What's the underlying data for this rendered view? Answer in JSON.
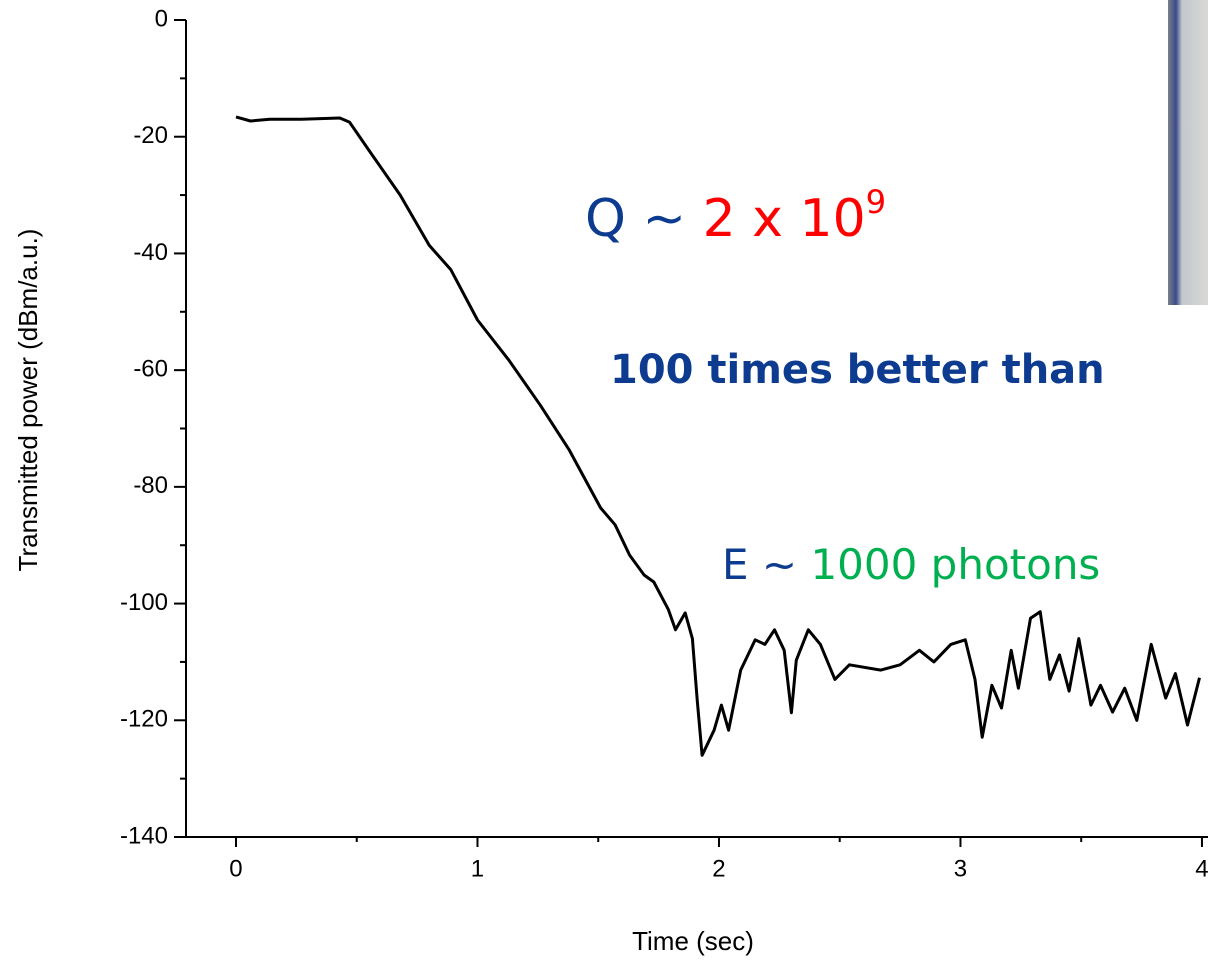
{
  "chart_data": {
    "type": "line",
    "x_label": "Time (sec)",
    "y_label": "Transmitted power (dBm/a.u.)",
    "xlim": [
      -0.207,
      4.025
    ],
    "ylim": [
      -140,
      0
    ],
    "xticks": [
      0,
      1,
      2,
      3,
      4
    ],
    "yticks": [
      0,
      -20,
      -40,
      -60,
      -80,
      -100,
      -120,
      -140
    ],
    "xminorticks": [
      0.5,
      1.5,
      2.5,
      3.5
    ],
    "yminorticks": [
      -10,
      -30,
      -50,
      -70,
      -90,
      -110,
      -130
    ],
    "series": [
      {
        "color": "#000000",
        "x": [
          0,
          0.06,
          0.14,
          0.27,
          0.43,
          0.47,
          0.55,
          0.68,
          0.8,
          0.89,
          1.0,
          1.13,
          1.26,
          1.38,
          1.51,
          1.57,
          1.63,
          1.69,
          1.73,
          1.79,
          1.82,
          1.86,
          1.89,
          1.91,
          1.93,
          1.98,
          2.01,
          2.04,
          2.09,
          2.15,
          2.19,
          2.23,
          2.27,
          2.3,
          2.32,
          2.37,
          2.42,
          2.48,
          2.54,
          2.67,
          2.75,
          2.83,
          2.89,
          2.96,
          3.02,
          3.06,
          3.09,
          3.13,
          3.17,
          3.21,
          3.24,
          3.29,
          3.33,
          3.37,
          3.41,
          3.45,
          3.49,
          3.54,
          3.58,
          3.63,
          3.68,
          3.73,
          3.79,
          3.85,
          3.89,
          3.94,
          3.99
        ],
        "values": [
          -16.6,
          -17.3,
          -17,
          -17,
          -16.8,
          -17.5,
          -22.3,
          -30,
          -38.6,
          -42.8,
          -51.4,
          -58.3,
          -66,
          -73.7,
          -83.6,
          -86.5,
          -91.7,
          -95.1,
          -96.3,
          -101,
          -104.5,
          -101.6,
          -106,
          -116.5,
          -126,
          -121.7,
          -117.4,
          -121.7,
          -111.4,
          -106.2,
          -107,
          -104.5,
          -108,
          -118.7,
          -109.7,
          -104.5,
          -107,
          -113,
          -110.5,
          -111.4,
          -110.5,
          -108,
          -110,
          -107,
          -106.2,
          -113,
          -122.9,
          -114,
          -117.9,
          -108,
          -114.5,
          -102.5,
          -101.4,
          -113,
          -108.8,
          -115,
          -106,
          -117.4,
          -114,
          -118.6,
          -114.5,
          -120,
          -107,
          -116.2,
          -112,
          -120.8,
          -112.7
        ]
      }
    ],
    "annotations": [
      {
        "size": 52,
        "bold": false,
        "parts": [
          {
            "text": "Q ~ ",
            "color": "#0d3b8f"
          },
          {
            "text": "2 x 10",
            "color": "#ff0000"
          },
          {
            "text": "9",
            "color": "#ff0000",
            "sup": true
          }
        ]
      },
      {
        "size": 40,
        "bold": true,
        "parts": [
          {
            "text": "100 times better than",
            "color": "#0d3b8f"
          }
        ]
      },
      {
        "size": 42,
        "bold": false,
        "parts": [
          {
            "text": "E ~ ",
            "color": "#0d3b8f"
          },
          {
            "text": "1000 photons",
            "color": "#00b050"
          }
        ]
      }
    ]
  }
}
